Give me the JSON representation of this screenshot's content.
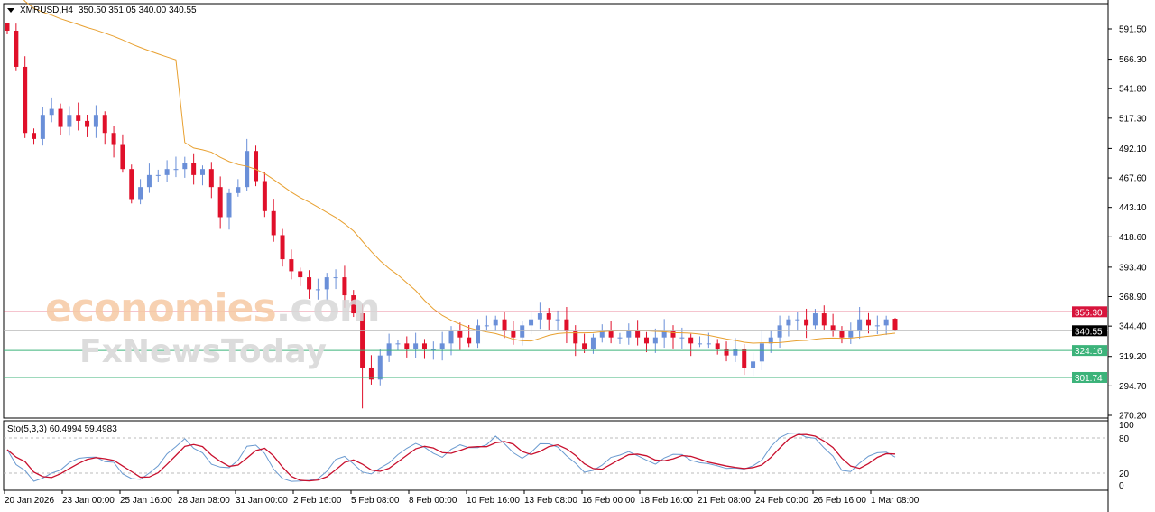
{
  "header": {
    "symbol": "XMRUSD,H4",
    "ohlc": "350.50 351.05 340.00 340.55"
  },
  "indicator": {
    "label": "Sto(5,3,3) 60.4994 59.4983",
    "levels": [
      "100",
      "80",
      "20",
      "0"
    ]
  },
  "watermark": {
    "line1": "economies",
    "line1_suffix": ".com",
    "line2": "FxNewsToday"
  },
  "colors": {
    "bull": "#6a8fd8",
    "bear": "#e0102a",
    "ma": "#e8a030",
    "resistance": "#d8143c",
    "support": "#3cb37a",
    "bid": "#000000",
    "sto_main": "#6a9ad0",
    "sto_signal": "#c8102e"
  },
  "chart_data": {
    "type": "candlestick",
    "symbol": "XMRUSD",
    "timeframe": "H4",
    "y_ticks": [
      591.5,
      566.3,
      541.8,
      517.3,
      492.1,
      467.6,
      443.1,
      418.6,
      393.4,
      368.9,
      344.4,
      319.2,
      294.7,
      270.2
    ],
    "ylim": [
      270.2,
      591.5
    ],
    "x_ticks": [
      "20 Jan 2026",
      "23 Jan 00:00",
      "25 Jan 16:00",
      "28 Jan 08:00",
      "31 Jan 00:00",
      "2 Feb 16:00",
      "5 Feb 08:00",
      "8 Feb 00:00",
      "10 Feb 16:00",
      "13 Feb 08:00",
      "16 Feb 00:00",
      "18 Feb 16:00",
      "21 Feb 08:00",
      "24 Feb 00:00",
      "26 Feb 16:00",
      "1 Mar 08:00"
    ],
    "closes_approx": [
      590,
      560,
      505,
      500,
      520,
      525,
      510,
      520,
      515,
      510,
      520,
      505,
      495,
      475,
      450,
      460,
      470,
      470,
      475,
      475,
      480,
      470,
      475,
      460,
      435,
      455,
      460,
      490,
      465,
      440,
      420,
      400,
      390,
      385,
      375,
      375,
      385,
      385,
      370,
      355,
      310,
      300,
      320,
      330,
      330,
      325,
      330,
      325,
      325,
      330,
      340,
      335,
      330,
      345,
      345,
      350,
      340,
      335,
      345,
      350,
      355,
      350,
      350,
      340,
      330,
      325,
      335,
      340,
      335,
      335,
      340,
      335,
      330,
      335,
      340,
      335,
      335,
      330,
      330,
      330,
      325,
      320,
      325,
      310,
      315,
      330,
      335,
      345,
      350,
      350,
      345,
      355,
      345,
      340,
      335,
      340,
      350,
      345,
      345,
      350,
      340.55
    ],
    "last_bar": {
      "open": 350.5,
      "high": 351.05,
      "low": 340.0,
      "close": 340.55
    },
    "horizontal_lines": [
      {
        "value": 356.3,
        "label": "356.30",
        "kind": "resistance"
      },
      {
        "value": 340.55,
        "label": "340.55",
        "kind": "bid"
      },
      {
        "value": 324.16,
        "label": "324.16",
        "kind": "support"
      },
      {
        "value": 301.74,
        "label": "301.74",
        "kind": "support"
      }
    ],
    "moving_average": "orange line",
    "stochastic": {
      "params": "5,3,3",
      "main": 60.4994,
      "signal": 59.4983,
      "levels": [
        80,
        20
      ],
      "range": [
        0,
        100
      ]
    }
  }
}
